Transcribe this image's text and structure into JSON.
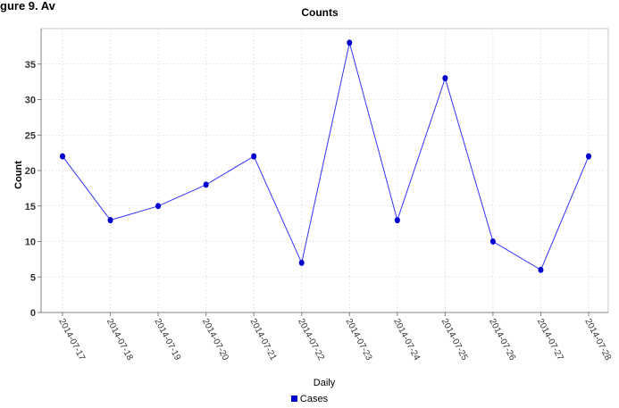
{
  "top_fragment": "gure 9. Av",
  "chart_data": {
    "type": "line",
    "title": "Counts",
    "xlabel": "Daily",
    "ylabel": "Count",
    "categories": [
      "2014-07-17",
      "2014-07-18",
      "2014-07-19",
      "2014-07-20",
      "2014-07-21",
      "2014-07-22",
      "2014-07-23",
      "2014-07-24",
      "2014-07-25",
      "2014-07-26",
      "2014-07-27",
      "2014-07-28"
    ],
    "series": [
      {
        "name": "Cases",
        "values": [
          22,
          13,
          15,
          18,
          22,
          7,
          38,
          13,
          33,
          10,
          6,
          22
        ]
      }
    ],
    "ylim": [
      0,
      40
    ],
    "yticks": [
      0,
      5,
      10,
      15,
      20,
      25,
      30,
      35
    ],
    "grid": true,
    "legend_position": "bottom",
    "colors": {
      "series": "#0000cc",
      "line": "#3333ff",
      "grid": "#d8d8d8",
      "axis": "#808080"
    }
  }
}
